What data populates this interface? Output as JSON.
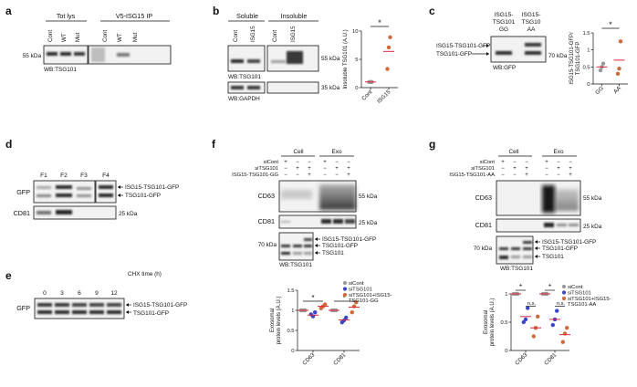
{
  "colors": {
    "siCont": "#9a9a9a",
    "siTSG101": "#3b46c8",
    "siTSG101_ISG15": "#cf6a3e",
    "mean_line": "#e0263a",
    "band": "#1a1a1a"
  },
  "panels": {
    "a": {
      "letter": "a",
      "header_tot": "Tot lys",
      "header_ip": "V5-ISG15 IP",
      "lanes_tot": [
        "Cont",
        "WT",
        "Mut"
      ],
      "lanes_ip": [
        "Cont",
        "WT",
        "Mut"
      ],
      "mw": "55 kDa",
      "wb": "WB:TSG101"
    },
    "b": {
      "letter": "b",
      "header_sol": "Soluble",
      "header_ins": "Insoluble",
      "lanes_sol": [
        "Cont",
        "ISG15"
      ],
      "lanes_ins": [
        "Cont",
        "ISG15"
      ],
      "mw1": "55 kDa",
      "mw2": "35 kDa",
      "wb1": "WB:TSG101",
      "wb2": "WB:GAPDH",
      "star": "*"
    },
    "c": {
      "letter": "c",
      "lane1_line1": "ISG15-",
      "lane1_line2": "TSG101",
      "lane1_line3": "GG",
      "lane2_line1": "ISG15-",
      "lane2_line2": "TSG10",
      "lane2_line3": "AA",
      "label_top": "ISG15-TSG101-GFP",
      "label_bot": "TSG101-GFP",
      "mw": "70 kDa",
      "wb": "WB:GFP",
      "star": "*"
    },
    "d": {
      "letter": "d",
      "fractions": [
        "F1",
        "F2",
        "F3",
        "F4"
      ],
      "row1": "GFP",
      "row2": "CD81",
      "label_top": "ISG15-TSG101-GFP",
      "label_bot": "TSG101-GFP",
      "mw": "25 kDa"
    },
    "e": {
      "letter": "e",
      "header": "CHX time (h)",
      "times": [
        "0",
        "3",
        "6",
        "9",
        "12"
      ],
      "row": "GFP",
      "label_top": "ISG15-TSG101-GFP",
      "label_bot": "TSG101-GFP"
    },
    "f": {
      "letter": "f",
      "header_cell": "Cell",
      "header_exo": "Exo",
      "cond_rows": [
        "siCont",
        "siTSG101",
        "ISG15-TSG101-GG"
      ],
      "signs": [
        [
          "+",
          "−",
          "−",
          "+",
          "−",
          "−"
        ],
        [
          "−",
          "+",
          "+",
          "−",
          "+",
          "+"
        ],
        [
          "−",
          "−",
          "+",
          "−",
          "−",
          "+"
        ]
      ],
      "row1": "CD63",
      "row2": "CD81",
      "mw1": "55 kDa",
      "mw2": "25 kDa",
      "mw3": "70 kDa",
      "label_top": "ISG15-TSG101-GFP",
      "label_mid": "TSG101-GFP",
      "label_bot": "TSG101",
      "wb": "WB:TSG101",
      "star": "*"
    },
    "g": {
      "letter": "g",
      "header_cell": "Cell",
      "header_exo": "Exo",
      "cond_rows": [
        "siCont",
        "siTSG101",
        "ISG15-TSG101-AA"
      ],
      "signs": [
        [
          "+",
          "−",
          "−",
          "+",
          "−",
          "−"
        ],
        [
          "−",
          "+",
          "+",
          "−",
          "+",
          "+"
        ],
        [
          "−",
          "−",
          "+",
          "−",
          "−",
          "+"
        ]
      ],
      "row1": "CD63",
      "row2": "CD81",
      "mw1": "55 kDa",
      "mw2": "25 kDa",
      "mw3": "70 kDa",
      "label_top": "ISG15-TSG101-GFP",
      "label_mid": "TSG101-GFP",
      "label_bot": "TSG101",
      "wb": "WB:TSG101",
      "star": "*",
      "ns": "n.s."
    }
  },
  "chart_data": [
    {
      "id": "b",
      "type": "scatter",
      "title": "",
      "ylabel": "Insoluble TSG101 (A.U.)",
      "ylim": [
        0,
        10
      ],
      "yticks": [
        0,
        5,
        10
      ],
      "categories": [
        "Cont",
        "ISG15"
      ],
      "points": [
        [
          1,
          1,
          1
        ],
        [
          3.3,
          7.1,
          8.9
        ]
      ],
      "means": [
        1,
        6.4
      ]
    },
    {
      "id": "c",
      "type": "scatter",
      "title": "",
      "ylabel": "ISG15-TSG101-GFP/ TSG101-GFP",
      "ylim": [
        0,
        1.5
      ],
      "yticks": [
        0,
        0.5,
        1,
        1.5
      ],
      "categories": [
        "GG",
        "AA"
      ],
      "points": [
        [
          0.4,
          0.5,
          0.6
        ],
        [
          0.3,
          0.45,
          1.25
        ]
      ],
      "means": [
        0.5,
        0.7
      ]
    },
    {
      "id": "f",
      "type": "scatter",
      "title": "",
      "ylabel": "Exosomal protein levels (A.U.)",
      "ylim": [
        0,
        1.5
      ],
      "yticks": [
        0,
        0.5,
        1,
        1.5
      ],
      "categories": [
        "CD63",
        "CD81"
      ],
      "legend": [
        "siCont",
        "siTSG101",
        "siTSG101+ISG15-TSG101-GG"
      ],
      "series": [
        {
          "name": "siCont",
          "values": [
            [
              1,
              1,
              1
            ],
            [
              1,
              1,
              1
            ]
          ],
          "means": [
            1,
            1
          ]
        },
        {
          "name": "siTSG101",
          "values": [
            [
              0.9,
              0.85,
              0.95
            ],
            [
              0.7,
              0.75,
              0.82
            ]
          ],
          "means": [
            0.88,
            0.76
          ]
        },
        {
          "name": "siTSG101+ISG15-TSG101-GG",
          "values": [
            [
              1.05,
              1.1,
              1.15
            ],
            [
              0.95,
              1.1,
              1.2
            ]
          ],
          "means": [
            1.1,
            1.08
          ]
        }
      ],
      "annotations": [
        {
          "category": "CD63",
          "text": "*"
        },
        {
          "category": "CD81",
          "text": "*"
        }
      ]
    },
    {
      "id": "g",
      "type": "scatter",
      "title": "",
      "ylabel": "Exosomal protein levels (A.U.)",
      "ylim": [
        0,
        1
      ],
      "yticks": [
        0,
        0.5,
        1
      ],
      "categories": [
        "CD63",
        "CD81"
      ],
      "legend": [
        "siCont",
        "siTSG101",
        "siTSG101+ISG15-TSG101-AA"
      ],
      "series": [
        {
          "name": "siCont",
          "values": [
            [
              1,
              1,
              1
            ],
            [
              1,
              1,
              1
            ]
          ],
          "means": [
            1,
            1
          ]
        },
        {
          "name": "siTSG101",
          "values": [
            [
              0.5,
              0.55,
              0.75
            ],
            [
              0.45,
              0.55,
              0.7
            ]
          ],
          "means": [
            0.6,
            0.55
          ]
        },
        {
          "name": "siTSG101+ISG15-TSG101-AA",
          "values": [
            [
              0.25,
              0.4,
              0.6
            ],
            [
              0.15,
              0.3,
              0.4
            ]
          ],
          "means": [
            0.4,
            0.28
          ]
        }
      ],
      "annotations": [
        {
          "category": "CD63",
          "text": "*"
        },
        {
          "category": "CD81",
          "text": "*"
        },
        {
          "category": "CD63",
          "text": "n.s."
        },
        {
          "category": "CD81",
          "text": "n.s."
        }
      ]
    }
  ]
}
